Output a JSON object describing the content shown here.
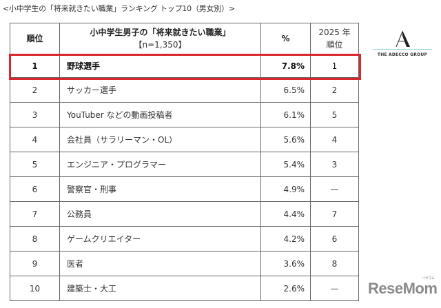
{
  "caption": "<小中学生の「将来就きたい職業」ランキング トップ10（男女別）>",
  "table": {
    "headers": {
      "rank": "順位",
      "job_title": "小中学生男子の「将来就きたい職業」",
      "sample": "【n=1,350】",
      "percent": "%",
      "prev_year": "2025 年",
      "prev_rank": "順位"
    },
    "rows": [
      {
        "rank": "1",
        "job": "野球選手",
        "percent": "7.8%",
        "prev": "1",
        "highlighted": true
      },
      {
        "rank": "2",
        "job": "サッカー選手",
        "percent": "6.5%",
        "prev": "2"
      },
      {
        "rank": "3",
        "job": "YouTuber などの動画投稿者",
        "percent": "6.1%",
        "prev": "5"
      },
      {
        "rank": "4",
        "job": "会社員（サラリーマン・OL）",
        "percent": "5.6%",
        "prev": "4"
      },
      {
        "rank": "5",
        "job": "エンジニア・プログラマー",
        "percent": "5.4%",
        "prev": "3"
      },
      {
        "rank": "6",
        "job": "警察官・刑事",
        "percent": "4.9%",
        "prev": "—"
      },
      {
        "rank": "7",
        "job": "公務員",
        "percent": "4.4%",
        "prev": "7"
      },
      {
        "rank": "8",
        "job": "ゲームクリエイター",
        "percent": "4.2%",
        "prev": "6"
      },
      {
        "rank": "9",
        "job": "医者",
        "percent": "3.6%",
        "prev": "8"
      },
      {
        "rank": "10",
        "job": "建築士・大工",
        "percent": "2.6%",
        "prev": "—"
      }
    ]
  },
  "highlight_color": "#d9252b",
  "logo": {
    "icon": "adecco-a-icon",
    "text": "THE ADECCO GROUP"
  },
  "watermark": {
    "text": "ReseMom",
    "kana": "リセマム"
  }
}
